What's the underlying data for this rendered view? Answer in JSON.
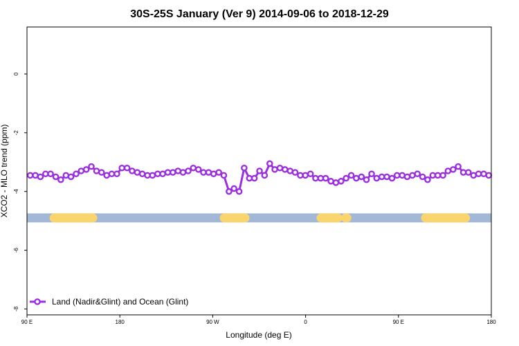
{
  "chart_data": {
    "type": "line",
    "title": "30S-25S January (Ver 9)   2014-09-06 to 2018-12-29",
    "xlabel": "Longitude (deg E)",
    "ylabel": "XCO2 - MLO trend (ppm)",
    "xlim": [
      90,
      450
    ],
    "ylim": [
      -8.2,
      1.6
    ],
    "x_ticks": [
      {
        "value": 90,
        "label": "90 E"
      },
      {
        "value": 162,
        "label": "180"
      },
      {
        "value": 234,
        "label": "90 W"
      },
      {
        "value": 306,
        "label": "0"
      },
      {
        "value": 378,
        "label": "90 E"
      },
      {
        "value": 450,
        "label": "180"
      }
    ],
    "y_ticks": [
      {
        "value": 0,
        "label": "0"
      },
      {
        "value": -2,
        "label": "-2"
      },
      {
        "value": -4,
        "label": "-4"
      },
      {
        "value": -6,
        "label": "-6"
      },
      {
        "value": -8,
        "label": "-8"
      }
    ],
    "grid": false,
    "legend_position": "bottom-left",
    "series": [
      {
        "name": "Land (Nadir&Glint) and Ocean (Glint)",
        "color": "#9b2fe0",
        "x": [
          92.5,
          96.5,
          100.4,
          104.4,
          108.3,
          112.3,
          116.2,
          120.2,
          124.1,
          128.1,
          132.0,
          136.0,
          139.9,
          143.9,
          147.8,
          151.8,
          155.7,
          159.7,
          163.6,
          167.6,
          171.5,
          175.5,
          179.4,
          183.4,
          187.3,
          191.3,
          195.2,
          199.2,
          203.1,
          207.1,
          211.0,
          215.0,
          218.9,
          222.9,
          226.8,
          230.8,
          234.7,
          238.7,
          242.6,
          246.6,
          250.5,
          254.5,
          258.4,
          262.4,
          266.3,
          270.3,
          274.2,
          278.2,
          282.1,
          286.1,
          290.0,
          294.0,
          297.9,
          301.9,
          305.8,
          309.8,
          313.7,
          317.7,
          321.6,
          325.6,
          329.5,
          333.5,
          337.4,
          341.4,
          345.3,
          349.3,
          353.2,
          357.2,
          361.1,
          365.1,
          369.0,
          373.0,
          376.9,
          380.9,
          384.8,
          388.8,
          392.7,
          396.7,
          400.6,
          404.6,
          408.5,
          412.5,
          416.4,
          420.4,
          424.3,
          428.3,
          432.2,
          436.2,
          440.1,
          444.1,
          448.0
        ],
        "y": [
          -3.45,
          -3.45,
          -3.5,
          -3.4,
          -3.4,
          -3.5,
          -3.6,
          -3.45,
          -3.5,
          -3.4,
          -3.3,
          -3.25,
          -3.15,
          -3.3,
          -3.35,
          -3.45,
          -3.4,
          -3.4,
          -3.2,
          -3.2,
          -3.3,
          -3.35,
          -3.4,
          -3.45,
          -3.45,
          -3.4,
          -3.4,
          -3.35,
          -3.35,
          -3.3,
          -3.35,
          -3.3,
          -3.2,
          -3.25,
          -3.35,
          -3.35,
          -3.4,
          -3.35,
          -3.45,
          -4.0,
          -3.9,
          -4.0,
          -3.2,
          -3.55,
          -3.55,
          -3.3,
          -3.45,
          -3.05,
          -3.25,
          -3.2,
          -3.25,
          -3.3,
          -3.35,
          -3.45,
          -3.45,
          -3.4,
          -3.55,
          -3.55,
          -3.55,
          -3.65,
          -3.7,
          -3.65,
          -3.55,
          -3.45,
          -3.55,
          -3.5,
          -3.6,
          -3.4,
          -3.55,
          -3.5,
          -3.5,
          -3.55,
          -3.45,
          -3.45,
          -3.5,
          -3.45,
          -3.4,
          -3.5,
          -3.6,
          -3.45,
          -3.45,
          -3.45,
          -3.3,
          -3.25,
          -3.15,
          -3.35,
          -3.35,
          -3.45,
          -3.4,
          -3.4,
          -3.45
        ]
      }
    ],
    "surface_band": {
      "y": -4.9,
      "ocean_color": "#a3b8d6",
      "land_color": "#fad56e",
      "land_segments": [
        [
          111,
          141
        ],
        [
          243,
          259
        ],
        [
          318,
          331
        ],
        [
          337,
          338
        ],
        [
          399,
          430
        ]
      ]
    }
  }
}
